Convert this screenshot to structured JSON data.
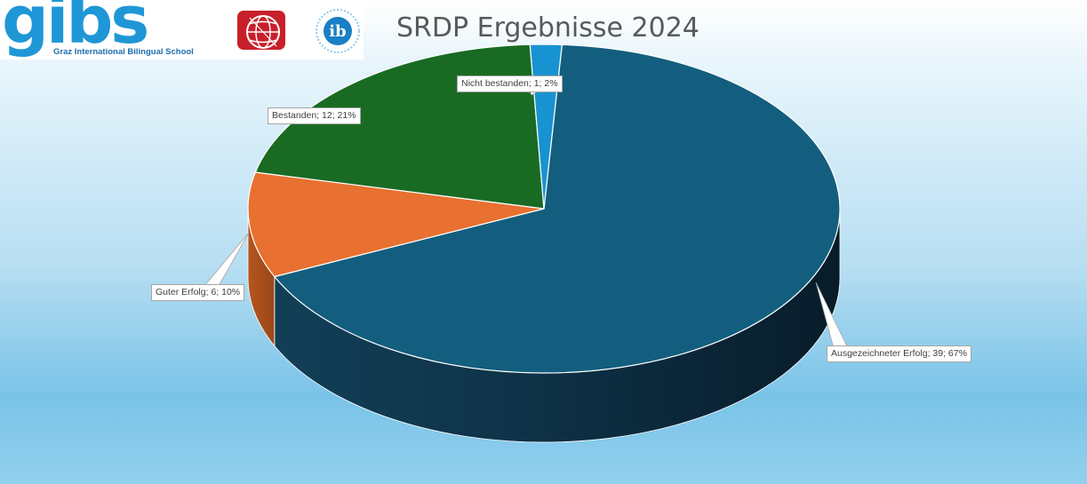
{
  "logo": {
    "brand_word": "gibs",
    "subtitle": "Graz International Bilingual School",
    "icons": [
      "globe-logo-icon",
      "ib-logo-icon"
    ],
    "ib_glyph": "ib"
  },
  "chart_data": {
    "type": "pie",
    "title": "SRDP Ergebnisse 2024",
    "slices": [
      {
        "label": "Ausgezeichneter Erfolg",
        "value": 39,
        "percent": 67,
        "color": "#135e7e",
        "data_label": "Ausgezeichneter Erfolg; 39; 67%"
      },
      {
        "label": "Guter Erfolg",
        "value": 6,
        "percent": 10,
        "color": "#e87030",
        "data_label": "Guter Erfolg; 6; 10%"
      },
      {
        "label": "Bestanden",
        "value": 12,
        "percent": 21,
        "color": "#196b24",
        "data_label": "Bestanden; 12; 21%"
      },
      {
        "label": "Nicht bestanden",
        "value": 1,
        "percent": 2,
        "color": "#1793d1",
        "data_label": "Nicht bestanden; 1; 2%"
      }
    ],
    "legend": "none",
    "style": "3d"
  }
}
